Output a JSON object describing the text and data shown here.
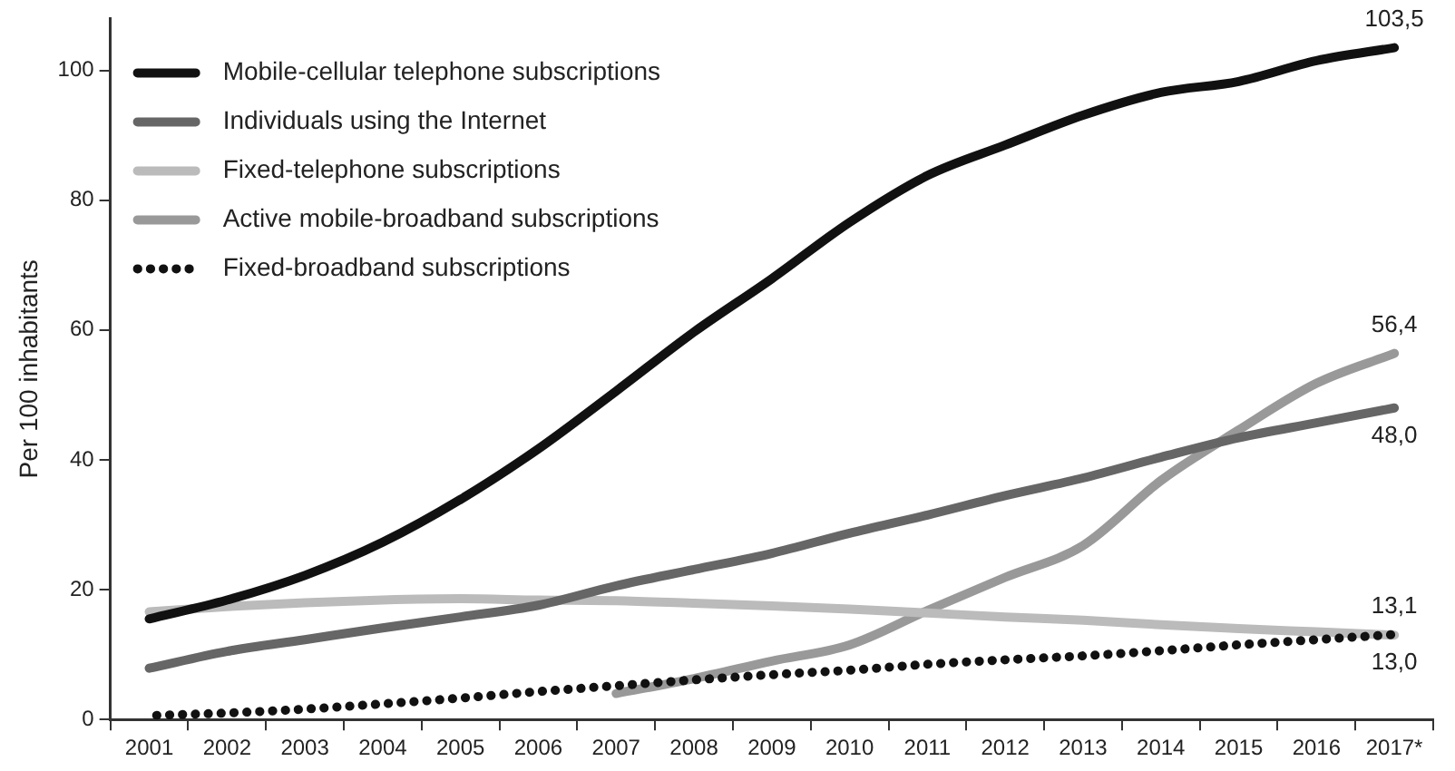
{
  "chart_data": {
    "type": "line",
    "ylabel": "Per 100 inhabitants",
    "categories": [
      "2001",
      "2002",
      "2003",
      "2004",
      "2005",
      "2006",
      "2007",
      "2008",
      "2009",
      "2010",
      "2011",
      "2012",
      "2013",
      "2014",
      "2015",
      "2016",
      "2017*"
    ],
    "ylim": [
      0,
      108
    ],
    "yticks": [
      0,
      20,
      40,
      60,
      80,
      100
    ],
    "grid": false,
    "legend": "top left",
    "marker": "none",
    "line_style": "solid",
    "series": [
      {
        "name": "Mobile-cellular telephone subscriptions",
        "color": "#111111",
        "values": [
          15.5,
          18.4,
          22.2,
          27.3,
          33.9,
          41.7,
          50.6,
          59.7,
          67.9,
          76.6,
          83.8,
          88.5,
          93.1,
          96.6,
          98.3,
          101.5,
          103.5
        ],
        "value_labels": [
          null,
          null,
          null,
          null,
          null,
          null,
          null,
          null,
          null,
          null,
          null,
          null,
          null,
          null,
          null,
          null,
          "103,5"
        ]
      },
      {
        "name": "Individuals using the Internet",
        "color": "#666666",
        "values": [
          7.9,
          10.5,
          12.3,
          14.1,
          15.8,
          17.6,
          20.6,
          23.1,
          25.6,
          28.7,
          31.5,
          34.5,
          37.2,
          40.4,
          43.4,
          45.7,
          48.0
        ],
        "value_labels": [
          null,
          null,
          null,
          null,
          null,
          null,
          null,
          null,
          null,
          null,
          null,
          null,
          null,
          null,
          null,
          null,
          "48,0"
        ]
      },
      {
        "name": "Fixed-telephone subscriptions",
        "color": "#bbbbbb",
        "values": [
          16.6,
          17.4,
          18.0,
          18.4,
          18.6,
          18.4,
          18.3,
          17.9,
          17.5,
          17.0,
          16.4,
          15.8,
          15.3,
          14.6,
          14.0,
          13.5,
          13.0
        ],
        "value_labels": [
          null,
          null,
          null,
          null,
          null,
          null,
          null,
          null,
          null,
          null,
          null,
          null,
          null,
          null,
          null,
          null,
          "13,0"
        ]
      },
      {
        "name": "Active mobile-broadband subscriptions",
        "color": "#999999",
        "values": [
          null,
          null,
          null,
          null,
          null,
          null,
          4.0,
          6.3,
          9.0,
          11.5,
          16.8,
          21.9,
          26.8,
          36.8,
          44.6,
          51.8,
          56.4
        ],
        "value_labels": [
          null,
          null,
          null,
          null,
          null,
          null,
          null,
          null,
          null,
          null,
          null,
          null,
          null,
          null,
          null,
          null,
          "56,4"
        ]
      },
      {
        "name": "Fixed-broadband subscriptions",
        "color": "#111111",
        "line_style": "dotted",
        "values": [
          0.6,
          1.0,
          1.6,
          2.4,
          3.3,
          4.3,
          5.2,
          6.1,
          6.9,
          7.6,
          8.5,
          9.2,
          9.8,
          10.6,
          11.5,
          12.3,
          13.1
        ],
        "value_labels": [
          null,
          null,
          null,
          null,
          null,
          null,
          null,
          null,
          null,
          null,
          null,
          null,
          null,
          null,
          null,
          null,
          "13,1"
        ]
      }
    ]
  }
}
